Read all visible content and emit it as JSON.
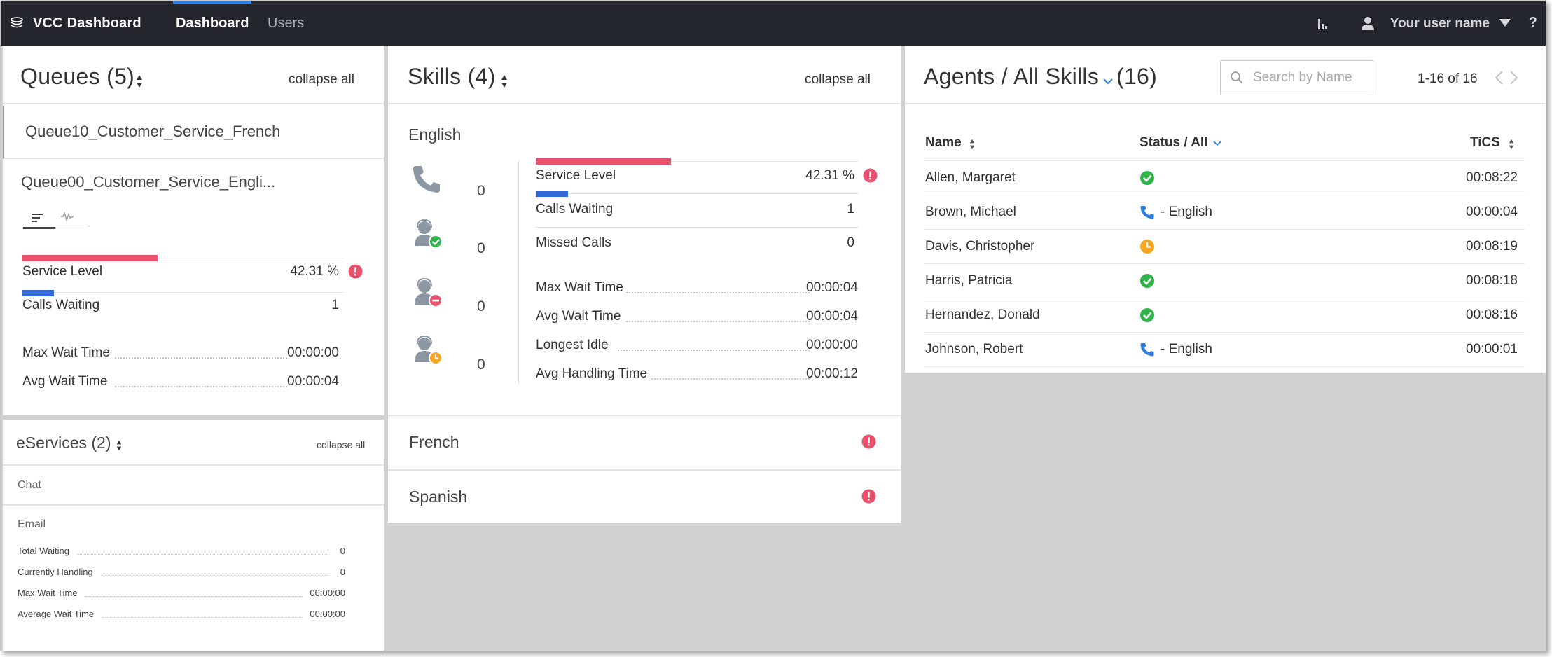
{
  "app": {
    "title": "VCC Dashboard",
    "logo_icon": "stack-icon"
  },
  "nav": {
    "tabs": [
      {
        "label": "Dashboard",
        "active": true
      },
      {
        "label": "Users",
        "active": false
      }
    ]
  },
  "user_menu": {
    "username": "Your user name",
    "help": "?",
    "reports_icon": "bar-chart-icon",
    "user_icon": "user-icon",
    "dropdown_icon": "caret-down-icon"
  },
  "colors": {
    "topbar": "#23272d",
    "accent": "#2f7fe0",
    "service_level_bar": "#e8506b",
    "calls_waiting_bar": "#3366d6",
    "alert": "#e8506b",
    "status_ready": "#2fb34a",
    "status_call": "#2f7fe0",
    "status_after_call": "#f5a623"
  },
  "queues": {
    "title": "Queues (5)",
    "collapse_label": "collapse all",
    "items": [
      {
        "name": "Queue10_Customer_Service_French"
      },
      {
        "name": "Queue00_Customer_Service_Engli...",
        "tabs": [
          "list-view-icon",
          "trend-chart-icon"
        ],
        "service_level": {
          "label": "Service Level",
          "value": "42.31 %",
          "fraction": 0.4231,
          "alert": true
        },
        "calls_waiting": {
          "label": "Calls Waiting",
          "value": "1"
        },
        "max_wait": {
          "label": "Max Wait Time",
          "value": "00:00:00"
        },
        "avg_wait": {
          "label": "Avg Wait Time",
          "value": "00:00:04"
        }
      }
    ]
  },
  "eservices": {
    "title": "eServices (2)",
    "collapse_label": "collapse all",
    "chat": {
      "label": "Chat"
    },
    "email": {
      "label": "Email",
      "metrics": [
        {
          "label": "Total Waiting",
          "value": "0"
        },
        {
          "label": "Currently Handling",
          "value": "0"
        },
        {
          "label": "Max Wait Time",
          "value": "00:00:00"
        },
        {
          "label": "Average Wait Time",
          "value": "00:00:00"
        }
      ]
    }
  },
  "skills": {
    "title": "Skills (4)",
    "collapse_label": "collapse all",
    "expanded": {
      "name": "English",
      "agent_states": [
        {
          "icon": "phone-icon",
          "count": "0"
        },
        {
          "icon": "agent-ready-icon",
          "count": "0"
        },
        {
          "icon": "agent-not-ready-icon",
          "count": "0"
        },
        {
          "icon": "agent-after-call-icon",
          "count": "0"
        }
      ],
      "service_level": {
        "label": "Service Level",
        "value": "42.31 %",
        "fraction": 0.4231,
        "alert": true
      },
      "calls_waiting": {
        "label": "Calls Waiting",
        "value": "1"
      },
      "missed_calls": {
        "label": "Missed Calls",
        "value": "0"
      },
      "metrics": [
        {
          "label": "Max Wait Time",
          "value": "00:00:04"
        },
        {
          "label": "Avg Wait Time",
          "value": "00:00:04"
        },
        {
          "label": "Longest Idle",
          "value": "00:00:00"
        },
        {
          "label": "Avg Handling Time",
          "value": "00:00:12"
        }
      ]
    },
    "collapsed": [
      {
        "name": "French",
        "alert": true
      },
      {
        "name": "Spanish",
        "alert": true
      }
    ]
  },
  "agents": {
    "title_prefix": "Agents /",
    "filter": "All Skills",
    "count": "(16)",
    "search_placeholder": "Search by Name",
    "pager": "1-16 of 16",
    "columns": {
      "name": "Name",
      "status": "Status / All",
      "tics": "TiCS"
    },
    "rows": [
      {
        "name": "Allen, Margaret",
        "status_icon": "ready-check-icon",
        "status_text": "",
        "tics": "00:08:22"
      },
      {
        "name": "Brown, Michael",
        "status_icon": "phone-icon",
        "status_text": "- English",
        "tics": "00:00:04"
      },
      {
        "name": "Davis, Christopher",
        "status_icon": "after-call-clock-icon",
        "status_text": "",
        "tics": "00:08:19"
      },
      {
        "name": "Harris, Patricia",
        "status_icon": "ready-check-icon",
        "status_text": "",
        "tics": "00:08:18"
      },
      {
        "name": "Hernandez, Donald",
        "status_icon": "ready-check-icon",
        "status_text": "",
        "tics": "00:08:16"
      },
      {
        "name": "Johnson, Robert",
        "status_icon": "phone-icon",
        "status_text": "- English",
        "tics": "00:00:01"
      }
    ]
  }
}
